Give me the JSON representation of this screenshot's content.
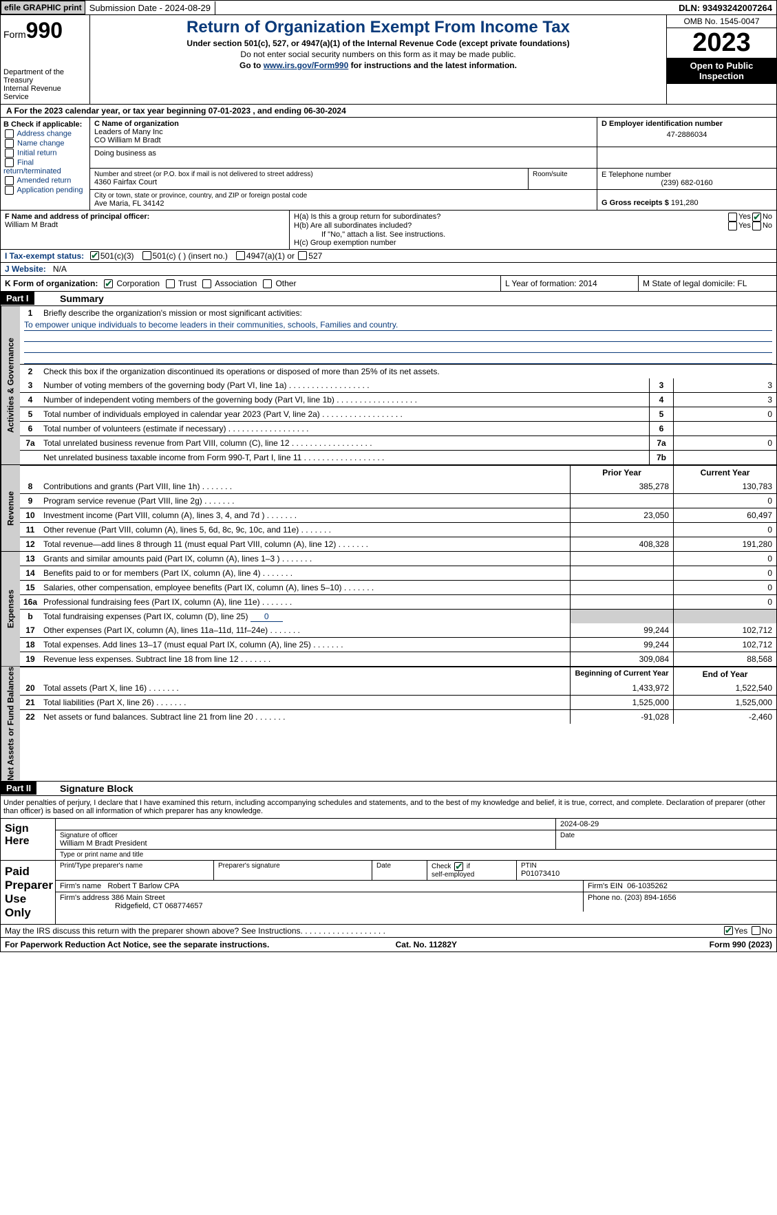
{
  "topbar": {
    "efile": "efile GRAPHIC print",
    "submission": "Submission Date - 2024-08-29",
    "dln": "DLN: 93493242007264"
  },
  "header": {
    "form_label": "Form",
    "form_num": "990",
    "title": "Return of Organization Exempt From Income Tax",
    "subtitle": "Under section 501(c), 527, or 4947(a)(1) of the Internal Revenue Code (except private foundations)",
    "warn": "Do not enter social security numbers on this form as it may be made public.",
    "goto_pre": "Go to ",
    "goto_link": "www.irs.gov/Form990",
    "goto_post": " for instructions and the latest information.",
    "dept": "Department of the Treasury",
    "irs": "Internal Revenue Service",
    "omb": "OMB No. 1545-0047",
    "year": "2023",
    "open": "Open to Public Inspection"
  },
  "rowA": "A  For the 2023 calendar year, or tax year beginning 07-01-2023    , and ending 06-30-2024",
  "boxB": {
    "title": "B Check if applicable:",
    "items": [
      "Address change",
      "Name change",
      "Initial return",
      "Final return/terminated",
      "Amended return",
      "Application pending"
    ]
  },
  "boxC": {
    "name_lbl": "C Name of organization",
    "name1": "Leaders of Many Inc",
    "name2": "CO William M Bradt",
    "dba_lbl": "Doing business as",
    "addr_lbl": "Number and street (or P.O. box if mail is not delivered to street address)",
    "addr": "4360 Fairfax Court",
    "room_lbl": "Room/suite",
    "city_lbl": "City or town, state or province, country, and ZIP or foreign postal code",
    "city": "Ave Maria, FL  34142"
  },
  "boxD": {
    "lbl": "D Employer identification number",
    "val": "47-2886034"
  },
  "boxE": {
    "lbl": "E Telephone number",
    "val": "(239) 682-0160"
  },
  "boxG": {
    "lbl": "G Gross receipts $",
    "val": "191,280"
  },
  "boxF": {
    "lbl": "F  Name and address of principal officer:",
    "val": "William M Bradt"
  },
  "boxH": {
    "a": "H(a)  Is this a group return for subordinates?",
    "yes": "Yes",
    "no": "No",
    "b": "H(b)  Are all subordinates included?",
    "note": "If \"No,\" attach a list. See instructions.",
    "c": "H(c)  Group exemption number"
  },
  "rowI": {
    "lbl": "I    Tax-exempt status:",
    "o1": "501(c)(3)",
    "o2": "501(c) (  ) (insert no.)",
    "o3": "4947(a)(1) or",
    "o4": "527"
  },
  "rowJ": {
    "lbl": "J   Website:",
    "val": "N/A"
  },
  "rowK": {
    "lbl": "K Form of organization:",
    "o1": "Corporation",
    "o2": "Trust",
    "o3": "Association",
    "o4": "Other"
  },
  "rowL": {
    "lbl": "L Year of formation: 2014"
  },
  "rowM": {
    "lbl": "M State of legal domicile: FL"
  },
  "part1": {
    "num": "Part I",
    "title": "Summary"
  },
  "gov": {
    "tab": "Activities & Governance",
    "l1": "Briefly describe the organization's mission or most significant activities:",
    "mission": "To empower unique individuals to become leaders in their communities, schools, Families and country.",
    "l2": "Check this box        if the organization discontinued its operations or disposed of more than 25% of its net assets.",
    "rows": [
      {
        "n": "3",
        "t": "Number of voting members of the governing body (Part VI, line 1a)",
        "b": "3",
        "v": "3"
      },
      {
        "n": "4",
        "t": "Number of independent voting members of the governing body (Part VI, line 1b)",
        "b": "4",
        "v": "3"
      },
      {
        "n": "5",
        "t": "Total number of individuals employed in calendar year 2023 (Part V, line 2a)",
        "b": "5",
        "v": "0"
      },
      {
        "n": "6",
        "t": "Total number of volunteers (estimate if necessary)",
        "b": "6",
        "v": ""
      },
      {
        "n": "7a",
        "t": "Total unrelated business revenue from Part VIII, column (C), line 12",
        "b": "7a",
        "v": "0"
      },
      {
        "n": "",
        "t": "Net unrelated business taxable income from Form 990-T, Part I, line 11",
        "b": "7b",
        "v": ""
      }
    ]
  },
  "rev": {
    "tab": "Revenue",
    "py": "Prior Year",
    "cy": "Current Year",
    "rows": [
      {
        "n": "8",
        "t": "Contributions and grants (Part VIII, line 1h)",
        "p": "385,278",
        "c": "130,783"
      },
      {
        "n": "9",
        "t": "Program service revenue (Part VIII, line 2g)",
        "p": "",
        "c": "0"
      },
      {
        "n": "10",
        "t": "Investment income (Part VIII, column (A), lines 3, 4, and 7d )",
        "p": "23,050",
        "c": "60,497"
      },
      {
        "n": "11",
        "t": "Other revenue (Part VIII, column (A), lines 5, 6d, 8c, 9c, 10c, and 11e)",
        "p": "",
        "c": "0"
      },
      {
        "n": "12",
        "t": "Total revenue—add lines 8 through 11 (must equal Part VIII, column (A), line 12)",
        "p": "408,328",
        "c": "191,280"
      }
    ]
  },
  "exp": {
    "tab": "Expenses",
    "rows": [
      {
        "n": "13",
        "t": "Grants and similar amounts paid (Part IX, column (A), lines 1–3 )",
        "p": "",
        "c": "0"
      },
      {
        "n": "14",
        "t": "Benefits paid to or for members (Part IX, column (A), line 4)",
        "p": "",
        "c": "0"
      },
      {
        "n": "15",
        "t": "Salaries, other compensation, employee benefits (Part IX, column (A), lines 5–10)",
        "p": "",
        "c": "0"
      },
      {
        "n": "16a",
        "t": "Professional fundraising fees (Part IX, column (A), line 11e)",
        "p": "",
        "c": "0"
      }
    ],
    "b": {
      "n": "b",
      "t": "Total fundraising expenses (Part IX, column (D), line 25)",
      "u": "0"
    },
    "rows2": [
      {
        "n": "17",
        "t": "Other expenses (Part IX, column (A), lines 11a–11d, 11f–24e)",
        "p": "99,244",
        "c": "102,712"
      },
      {
        "n": "18",
        "t": "Total expenses. Add lines 13–17 (must equal Part IX, column (A), line 25)",
        "p": "99,244",
        "c": "102,712"
      },
      {
        "n": "19",
        "t": "Revenue less expenses. Subtract line 18 from line 12",
        "p": "309,084",
        "c": "88,568"
      }
    ]
  },
  "net": {
    "tab": "Net Assets or Fund Balances",
    "by": "Beginning of Current Year",
    "ey": "End of Year",
    "rows": [
      {
        "n": "20",
        "t": "Total assets (Part X, line 16)",
        "p": "1,433,972",
        "c": "1,522,540"
      },
      {
        "n": "21",
        "t": "Total liabilities (Part X, line 26)",
        "p": "1,525,000",
        "c": "1,525,000"
      },
      {
        "n": "22",
        "t": "Net assets or fund balances. Subtract line 21 from line 20",
        "p": "-91,028",
        "c": "-2,460"
      }
    ]
  },
  "part2": {
    "num": "Part II",
    "title": "Signature Block"
  },
  "perjury": "Under penalties of perjury, I declare that I have examined this return, including accompanying schedules and statements, and to the best of my knowledge and belief, it is true, correct, and complete. Declaration of preparer (other than officer) is based on all information of which preparer has any knowledge.",
  "sign": {
    "here": "Sign Here",
    "date": "2024-08-29",
    "sig_lbl": "Signature of officer",
    "date_lbl": "Date",
    "officer": "William M Bradt  President",
    "type_lbl": "Type or print name and title"
  },
  "prep": {
    "here": "Paid Preparer Use Only",
    "h": [
      "Print/Type preparer's name",
      "Preparer's signature",
      "Date"
    ],
    "chk": "Check",
    "se": "self-employed",
    "ptin_lbl": "PTIN",
    "ptin": "P01073410",
    "firm_lbl": "Firm's name",
    "firm": "Robert T Barlow CPA",
    "ein_lbl": "Firm's EIN",
    "ein": "06-1035262",
    "addr_lbl": "Firm's address",
    "addr1": "386 Main Street",
    "addr2": "Ridgefield, CT  068774657",
    "phone_lbl": "Phone no.",
    "phone": "(203) 894-1656"
  },
  "discuss": "May the IRS discuss this return with the preparer shown above? See Instructions.",
  "footer": {
    "l": "For Paperwork Reduction Act Notice, see the separate instructions.",
    "c": "Cat. No. 11282Y",
    "r": "Form 990 (2023)"
  }
}
